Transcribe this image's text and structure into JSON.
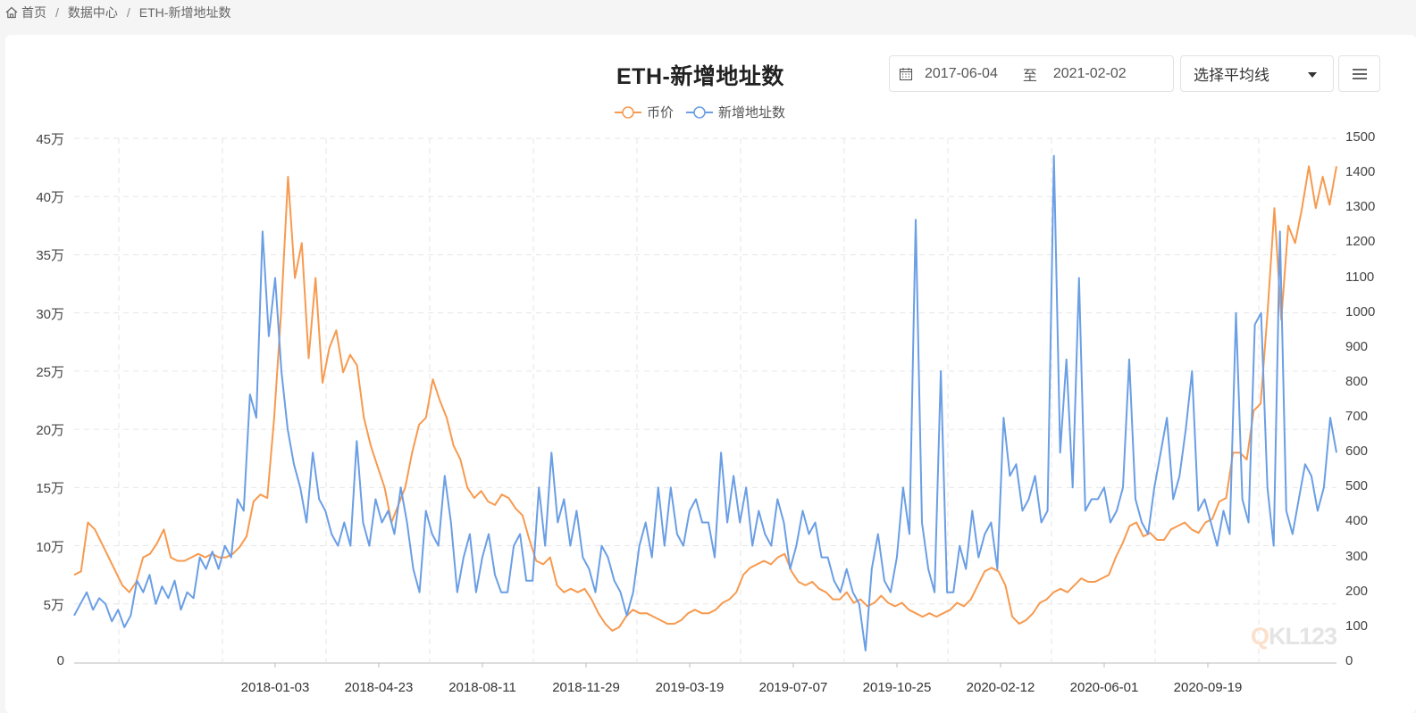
{
  "breadcrumb": {
    "items": [
      {
        "label": "首页",
        "icon": "home-icon"
      },
      {
        "label": "数据中心"
      },
      {
        "label": "ETH-新增地址数"
      }
    ],
    "separator": "/"
  },
  "header": {
    "title": "ETH-新增地址数",
    "date_start": "2017-06-04",
    "date_sep": "至",
    "date_end": "2021-02-02",
    "ma_select": "选择平均线",
    "menu_icon": "hamburger-menu-icon"
  },
  "legend": [
    {
      "name": "币价",
      "color": "#f79a4f"
    },
    {
      "name": "新增地址数",
      "color": "#6a9ee5"
    }
  ],
  "watermark": {
    "q": "Q",
    "rest": "KL123"
  },
  "chart_data": {
    "type": "line",
    "title": "ETH-新增地址数",
    "x_range": [
      "2017-06-04",
      "2021-02-02"
    ],
    "x_tick_labels": [
      "2018-01-03",
      "2018-04-23",
      "2018-08-11",
      "2018-11-29",
      "2019-03-19",
      "2019-07-07",
      "2019-10-25",
      "2020-02-12",
      "2020-06-01",
      "2020-09-19"
    ],
    "left_axis": {
      "name": "新增地址数",
      "min": 0,
      "max": 450000,
      "ticks": [
        "0",
        "5万",
        "10万",
        "15万",
        "20万",
        "25万",
        "30万",
        "35万",
        "40万",
        "45万"
      ]
    },
    "right_axis": {
      "name": "币价",
      "min": 0,
      "max": 1500,
      "ticks": [
        "0",
        "100",
        "200",
        "300",
        "400",
        "500",
        "600",
        "700",
        "800",
        "900",
        "1000",
        "1100",
        "1200",
        "1300",
        "1400",
        "1500"
      ]
    },
    "grid": true,
    "legend_position": "top-center",
    "series": [
      {
        "name": "币价",
        "axis": "right",
        "color": "#f79a4f",
        "values": [
          250,
          260,
          400,
          380,
          340,
          300,
          260,
          220,
          200,
          230,
          300,
          310,
          340,
          380,
          300,
          290,
          290,
          300,
          310,
          300,
          310,
          300,
          300,
          310,
          330,
          360,
          460,
          480,
          470,
          700,
          1000,
          1390,
          1100,
          1200,
          870,
          1100,
          800,
          900,
          950,
          830,
          880,
          850,
          700,
          620,
          560,
          500,
          400,
          450,
          500,
          600,
          680,
          700,
          810,
          750,
          700,
          620,
          580,
          500,
          470,
          490,
          460,
          450,
          480,
          470,
          440,
          420,
          350,
          290,
          280,
          300,
          220,
          200,
          210,
          200,
          210,
          180,
          140,
          110,
          90,
          100,
          130,
          150,
          140,
          140,
          130,
          120,
          110,
          110,
          120,
          140,
          150,
          140,
          140,
          150,
          170,
          180,
          200,
          250,
          270,
          280,
          290,
          280,
          300,
          310,
          260,
          230,
          220,
          230,
          210,
          200,
          180,
          180,
          200,
          170,
          180,
          160,
          170,
          190,
          170,
          160,
          170,
          150,
          140,
          130,
          140,
          130,
          140,
          150,
          170,
          160,
          180,
          220,
          260,
          270,
          260,
          220,
          130,
          110,
          120,
          140,
          170,
          180,
          200,
          210,
          200,
          220,
          240,
          230,
          230,
          240,
          250,
          300,
          340,
          390,
          400,
          360,
          370,
          350,
          350,
          380,
          390,
          400,
          380,
          370,
          400,
          410,
          460,
          470,
          600,
          600,
          580,
          720,
          740,
          1000,
          1300,
          980,
          1250,
          1200,
          1300,
          1420,
          1300,
          1390,
          1310,
          1420
        ]
      },
      {
        "name": "新增地址数",
        "axis": "left",
        "color": "#6a9ee5",
        "values": [
          40000,
          50000,
          60000,
          45000,
          55000,
          50000,
          35000,
          45000,
          30000,
          40000,
          70000,
          60000,
          75000,
          50000,
          65000,
          55000,
          70000,
          45000,
          60000,
          55000,
          90000,
          80000,
          95000,
          80000,
          100000,
          90000,
          140000,
          130000,
          230000,
          210000,
          370000,
          280000,
          330000,
          250000,
          200000,
          170000,
          150000,
          120000,
          180000,
          140000,
          130000,
          110000,
          100000,
          120000,
          100000,
          190000,
          120000,
          100000,
          140000,
          120000,
          130000,
          110000,
          150000,
          120000,
          80000,
          60000,
          130000,
          110000,
          100000,
          160000,
          120000,
          60000,
          90000,
          110000,
          60000,
          90000,
          110000,
          75000,
          60000,
          60000,
          100000,
          110000,
          70000,
          70000,
          150000,
          100000,
          180000,
          120000,
          140000,
          100000,
          130000,
          90000,
          80000,
          60000,
          100000,
          90000,
          70000,
          60000,
          40000,
          60000,
          100000,
          120000,
          90000,
          150000,
          100000,
          150000,
          110000,
          100000,
          130000,
          140000,
          120000,
          120000,
          90000,
          180000,
          120000,
          160000,
          120000,
          150000,
          100000,
          130000,
          110000,
          100000,
          140000,
          120000,
          80000,
          100000,
          130000,
          110000,
          120000,
          90000,
          90000,
          70000,
          60000,
          80000,
          60000,
          50000,
          10000,
          80000,
          110000,
          70000,
          60000,
          90000,
          150000,
          110000,
          380000,
          120000,
          80000,
          60000,
          250000,
          60000,
          60000,
          100000,
          80000,
          130000,
          90000,
          110000,
          120000,
          80000,
          210000,
          160000,
          170000,
          130000,
          140000,
          160000,
          120000,
          130000,
          435000,
          180000,
          260000,
          150000,
          330000,
          130000,
          140000,
          140000,
          150000,
          120000,
          130000,
          150000,
          260000,
          140000,
          120000,
          110000,
          150000,
          180000,
          210000,
          140000,
          160000,
          200000,
          250000,
          130000,
          140000,
          120000,
          100000,
          130000,
          110000,
          300000,
          140000,
          120000,
          290000,
          300000,
          150000,
          100000,
          370000,
          130000,
          110000,
          140000,
          170000,
          160000,
          130000,
          150000,
          210000,
          180000
        ]
      }
    ]
  }
}
